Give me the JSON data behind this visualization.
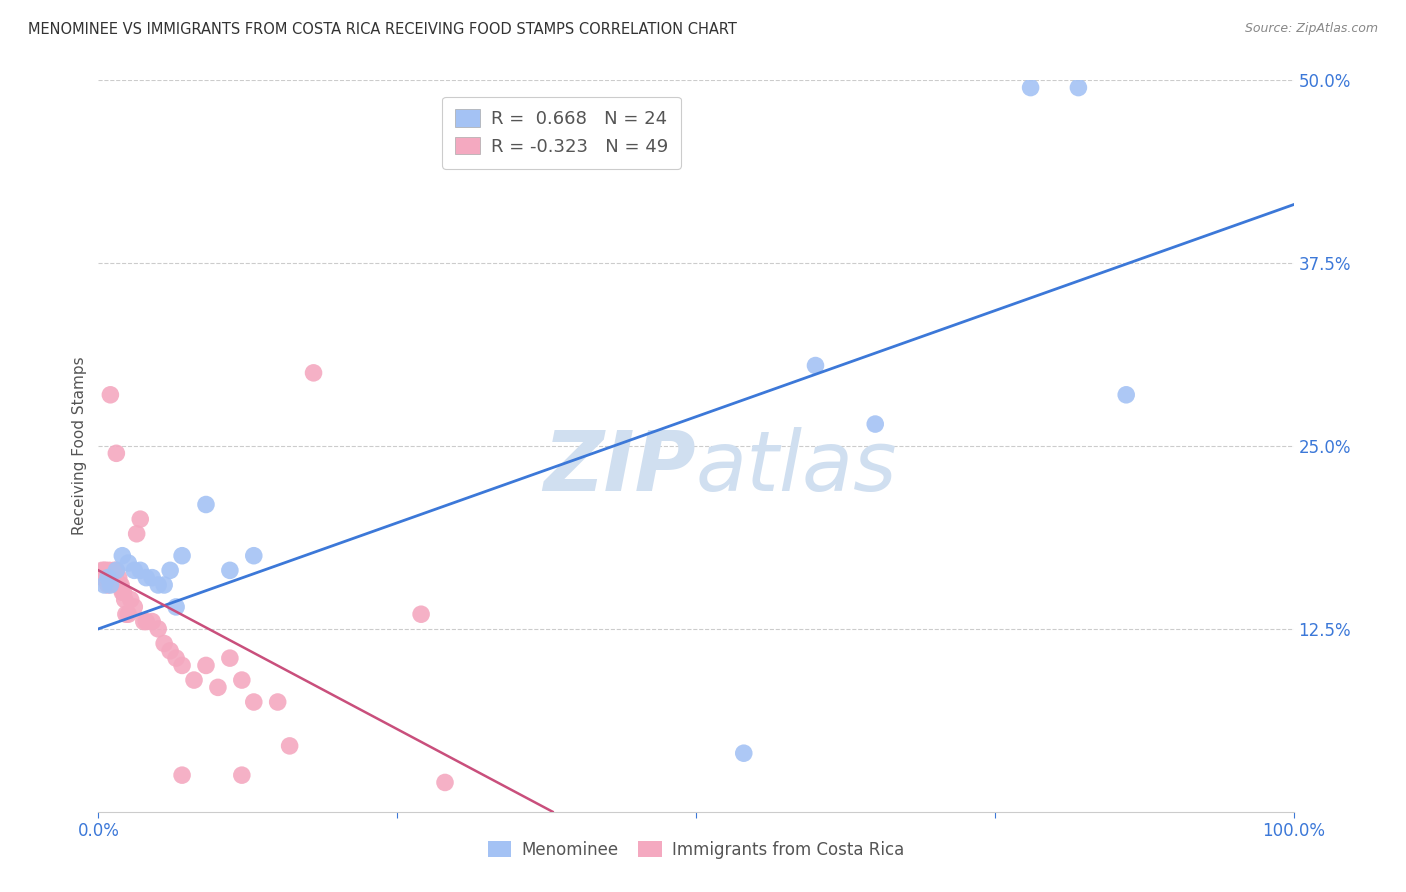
{
  "title": "MENOMINEE VS IMMIGRANTS FROM COSTA RICA RECEIVING FOOD STAMPS CORRELATION CHART",
  "source": "Source: ZipAtlas.com",
  "ylabel": "Receiving Food Stamps",
  "xlim": [
    0.0,
    1.0
  ],
  "ylim": [
    0.0,
    0.5
  ],
  "yticks": [
    0.0,
    0.125,
    0.25,
    0.375,
    0.5
  ],
  "ytick_labels": [
    "",
    "12.5%",
    "25.0%",
    "37.5%",
    "50.0%"
  ],
  "xticks": [
    0.0,
    0.25,
    0.5,
    0.75,
    1.0
  ],
  "xtick_labels": [
    "0.0%",
    "",
    "",
    "",
    "100.0%"
  ],
  "legend_labels": [
    "Menominee",
    "Immigrants from Costa Rica"
  ],
  "blue_R": "0.668",
  "blue_N": "24",
  "pink_R": "-0.323",
  "pink_N": "49",
  "blue_color": "#a4c2f4",
  "pink_color": "#f4a9c0",
  "blue_line_color": "#3c78d8",
  "pink_line_color": "#c94f7c",
  "watermark_color": "#d0dff0",
  "background_color": "#ffffff",
  "grid_color": "#cccccc",
  "title_color": "#333333",
  "axis_label_color": "#555555",
  "tick_color_blue": "#3c78d8",
  "tick_color_right": "#3c78d8",
  "blue_scatter_x": [
    0.005,
    0.008,
    0.01,
    0.015,
    0.02,
    0.025,
    0.03,
    0.035,
    0.04,
    0.045,
    0.05,
    0.055,
    0.06,
    0.065,
    0.07,
    0.09,
    0.11,
    0.13,
    0.54,
    0.6,
    0.65,
    0.78,
    0.82,
    0.86
  ],
  "blue_scatter_y": [
    0.155,
    0.16,
    0.155,
    0.165,
    0.175,
    0.17,
    0.165,
    0.165,
    0.16,
    0.16,
    0.155,
    0.155,
    0.165,
    0.14,
    0.175,
    0.21,
    0.165,
    0.175,
    0.04,
    0.305,
    0.265,
    0.495,
    0.495,
    0.285
  ],
  "pink_scatter_x": [
    0.003,
    0.004,
    0.005,
    0.006,
    0.007,
    0.008,
    0.009,
    0.01,
    0.011,
    0.012,
    0.013,
    0.014,
    0.015,
    0.016,
    0.017,
    0.018,
    0.019,
    0.02,
    0.021,
    0.022,
    0.023,
    0.025,
    0.027,
    0.03,
    0.032,
    0.035,
    0.038,
    0.04,
    0.045,
    0.05,
    0.055,
    0.06,
    0.065,
    0.07,
    0.08,
    0.09,
    0.1,
    0.11,
    0.12,
    0.13,
    0.15,
    0.18,
    0.27,
    0.16,
    0.07,
    0.01,
    0.015,
    0.12,
    0.29
  ],
  "pink_scatter_y": [
    0.165,
    0.16,
    0.165,
    0.165,
    0.16,
    0.155,
    0.165,
    0.16,
    0.16,
    0.16,
    0.165,
    0.16,
    0.165,
    0.155,
    0.16,
    0.155,
    0.155,
    0.15,
    0.15,
    0.145,
    0.135,
    0.135,
    0.145,
    0.14,
    0.19,
    0.2,
    0.13,
    0.13,
    0.13,
    0.125,
    0.115,
    0.11,
    0.105,
    0.1,
    0.09,
    0.1,
    0.085,
    0.105,
    0.09,
    0.075,
    0.075,
    0.3,
    0.135,
    0.045,
    0.025,
    0.285,
    0.245,
    0.025,
    0.02
  ],
  "blue_line_x": [
    0.0,
    1.0
  ],
  "blue_line_y": [
    0.125,
    0.415
  ],
  "pink_line_x": [
    0.0,
    0.38
  ],
  "pink_line_y": [
    0.165,
    0.0
  ]
}
